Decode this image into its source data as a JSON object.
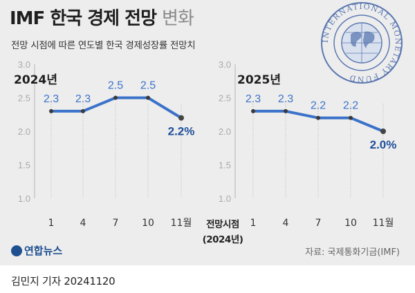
{
  "header": {
    "title_bold": "IMF 한국 경제 전망",
    "title_light": "변화",
    "subtitle": "전망 시점에 따른 연도별 한국 경제성장률 전망치"
  },
  "emblem": {
    "text": "INTERNATIONAL MONETARY FUND",
    "color": "#5b78b0"
  },
  "chart_data": [
    {
      "type": "line",
      "title": "2024년",
      "categories": [
        "1",
        "4",
        "7",
        "10",
        "11월"
      ],
      "values": [
        2.3,
        2.3,
        2.5,
        2.5,
        2.2
      ],
      "value_labels": [
        "2.3",
        "2.3",
        "2.5",
        "2.5",
        "2.2%"
      ],
      "yticks": [
        "1.0",
        "1.5",
        "2.0",
        "2.5",
        "3.0"
      ],
      "ylim": [
        1.0,
        3.0
      ],
      "xlabel": "전망시점 (2024년)",
      "grid": false,
      "color": "#3b72c9",
      "highlight_color": "#1f4f9a"
    },
    {
      "type": "line",
      "title": "2025년",
      "categories": [
        "1",
        "4",
        "7",
        "10",
        "11월"
      ],
      "values": [
        2.3,
        2.3,
        2.2,
        2.2,
        2.0
      ],
      "value_labels": [
        "2.3",
        "2.3",
        "2.2",
        "2.2",
        "2.0%"
      ],
      "yticks": [
        "1.0",
        "1.5",
        "2.0",
        "2.5",
        "3.0"
      ],
      "ylim": [
        1.0,
        3.0
      ],
      "xlabel": "전망시점 (2024년)",
      "grid": false,
      "color": "#3b72c9",
      "highlight_color": "#1f4f9a"
    }
  ],
  "axis_title": {
    "line1": "전망시점",
    "line2": "(2024년)"
  },
  "footer": {
    "logo": "연합뉴스",
    "source": "자료: 국제통화기금(IMF)",
    "byline": "김민지 기자  20241120"
  }
}
